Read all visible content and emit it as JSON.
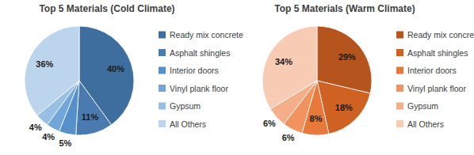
{
  "chart_data": [
    {
      "type": "pie",
      "title": "Top 5 Materials (Cold Climate)",
      "categories": [
        "Ready mix concrete",
        "Asphalt shingles",
        "Interior doors",
        "Vinyl plank floor",
        "Gypsum",
        "All Others"
      ],
      "values": [
        40,
        11,
        5,
        4,
        4,
        36
      ],
      "value_labels": [
        "40%",
        "11%",
        "5%",
        "4%",
        "4%",
        "36%"
      ],
      "colors": [
        "#3e6e9e",
        "#4a7bb0",
        "#5590cc",
        "#72a6da",
        "#98bfe4",
        "#bcd5ec"
      ],
      "data_labels": true,
      "legend": "right"
    },
    {
      "type": "pie",
      "title": "Top 5 Materials (Warm Climate)",
      "categories": [
        "Ready mix concrete",
        "Asphalt shingles",
        "Interior doors",
        "Vinyl plank floor",
        "Gypsum",
        "All Others"
      ],
      "values": [
        29,
        18,
        8,
        6,
        6,
        34
      ],
      "value_labels": [
        "29%",
        "18%",
        "8%",
        "6%",
        "6%",
        "34%"
      ],
      "colors": [
        "#b5541c",
        "#cf6223",
        "#e8793a",
        "#f0935f",
        "#f4ae8a",
        "#f8cbb5"
      ],
      "data_labels": true,
      "legend": "right"
    }
  ]
}
